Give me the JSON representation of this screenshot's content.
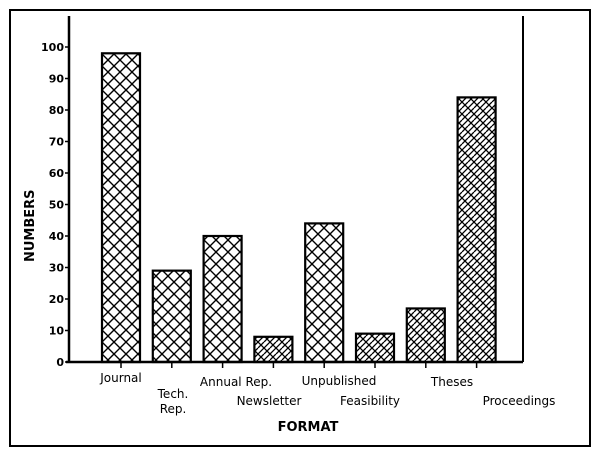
{
  "chart_data": {
    "type": "bar",
    "xlabel": "FORMAT",
    "ylabel": "NUMBERS",
    "ylim": [
      0,
      100
    ],
    "yticks": [
      0,
      10,
      20,
      30,
      40,
      50,
      60,
      70,
      80,
      90,
      100
    ],
    "grid": false,
    "categories": [
      "Journal",
      "Tech. Rep.",
      "Annual Rep.",
      "Newsletter",
      "Unpublished",
      "Feasibility",
      "Theses",
      "Proceedings"
    ],
    "category_label_lines": [
      [
        "Journal"
      ],
      [
        "Tech.",
        "Rep."
      ],
      [
        "Annual Rep."
      ],
      [
        "Newsletter"
      ],
      [
        "Unpublished"
      ],
      [
        "Feasibility"
      ],
      [
        "Theses"
      ],
      [
        "Proceedings"
      ]
    ],
    "values": [
      98,
      29,
      40,
      8,
      44,
      9,
      17,
      84
    ],
    "fill_patterns": [
      "crosshatch",
      "crosshatch",
      "crosshatch",
      "dense-hatch",
      "crosshatch",
      "dense-hatch",
      "dense-hatch",
      "dense-hatch"
    ],
    "colors": {
      "ink": "#000000",
      "background": "#ffffff"
    }
  }
}
